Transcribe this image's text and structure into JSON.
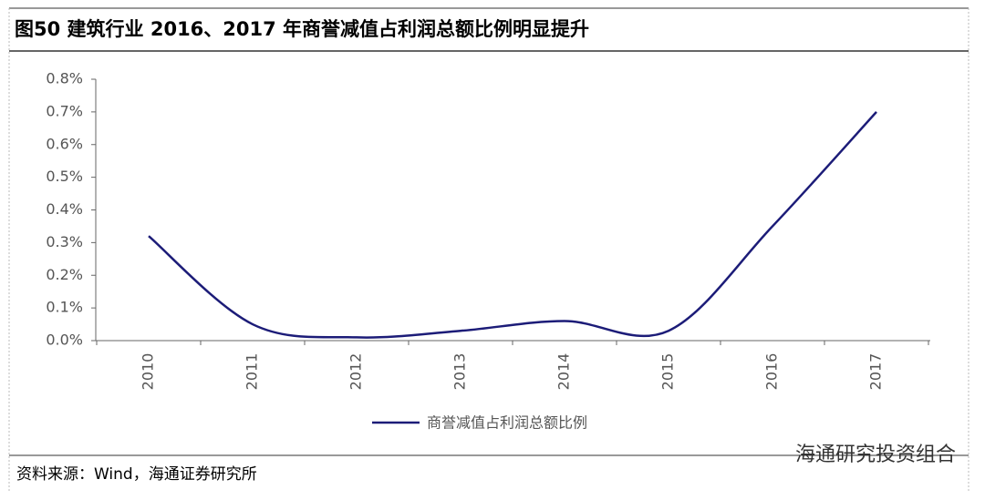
{
  "chart_data": {
    "type": "line",
    "title": "图50 建筑行业 2016、2017 年商誉减值占利润总额比例明显提升",
    "categories": [
      "2010",
      "2011",
      "2012",
      "2013",
      "2014",
      "2015",
      "2016",
      "2017"
    ],
    "series": [
      {
        "name": "商誉减值占利润总额比例",
        "color": "#1c1c78",
        "values": [
          0.32,
          0.05,
          0.01,
          0.03,
          0.06,
          0.03,
          0.35,
          0.7
        ]
      }
    ],
    "ylim": [
      0,
      0.8
    ],
    "yticks": [
      {
        "value": 0,
        "label": "0.0%"
      },
      {
        "value": 0.1,
        "label": "0.1%"
      },
      {
        "value": 0.2,
        "label": "0.2%"
      },
      {
        "value": 0.3,
        "label": "0.3%"
      },
      {
        "value": 0.4,
        "label": "0.4%"
      },
      {
        "value": 0.5,
        "label": "0.5%"
      },
      {
        "value": 0.6,
        "label": "0.6%"
      },
      {
        "value": 0.7,
        "label": "0.7%"
      },
      {
        "value": 0.8,
        "label": "0.8%"
      }
    ],
    "smooth": true,
    "source": "资料来源：Wind，海通证券研究所",
    "watermark": "海通研究投资组合"
  }
}
